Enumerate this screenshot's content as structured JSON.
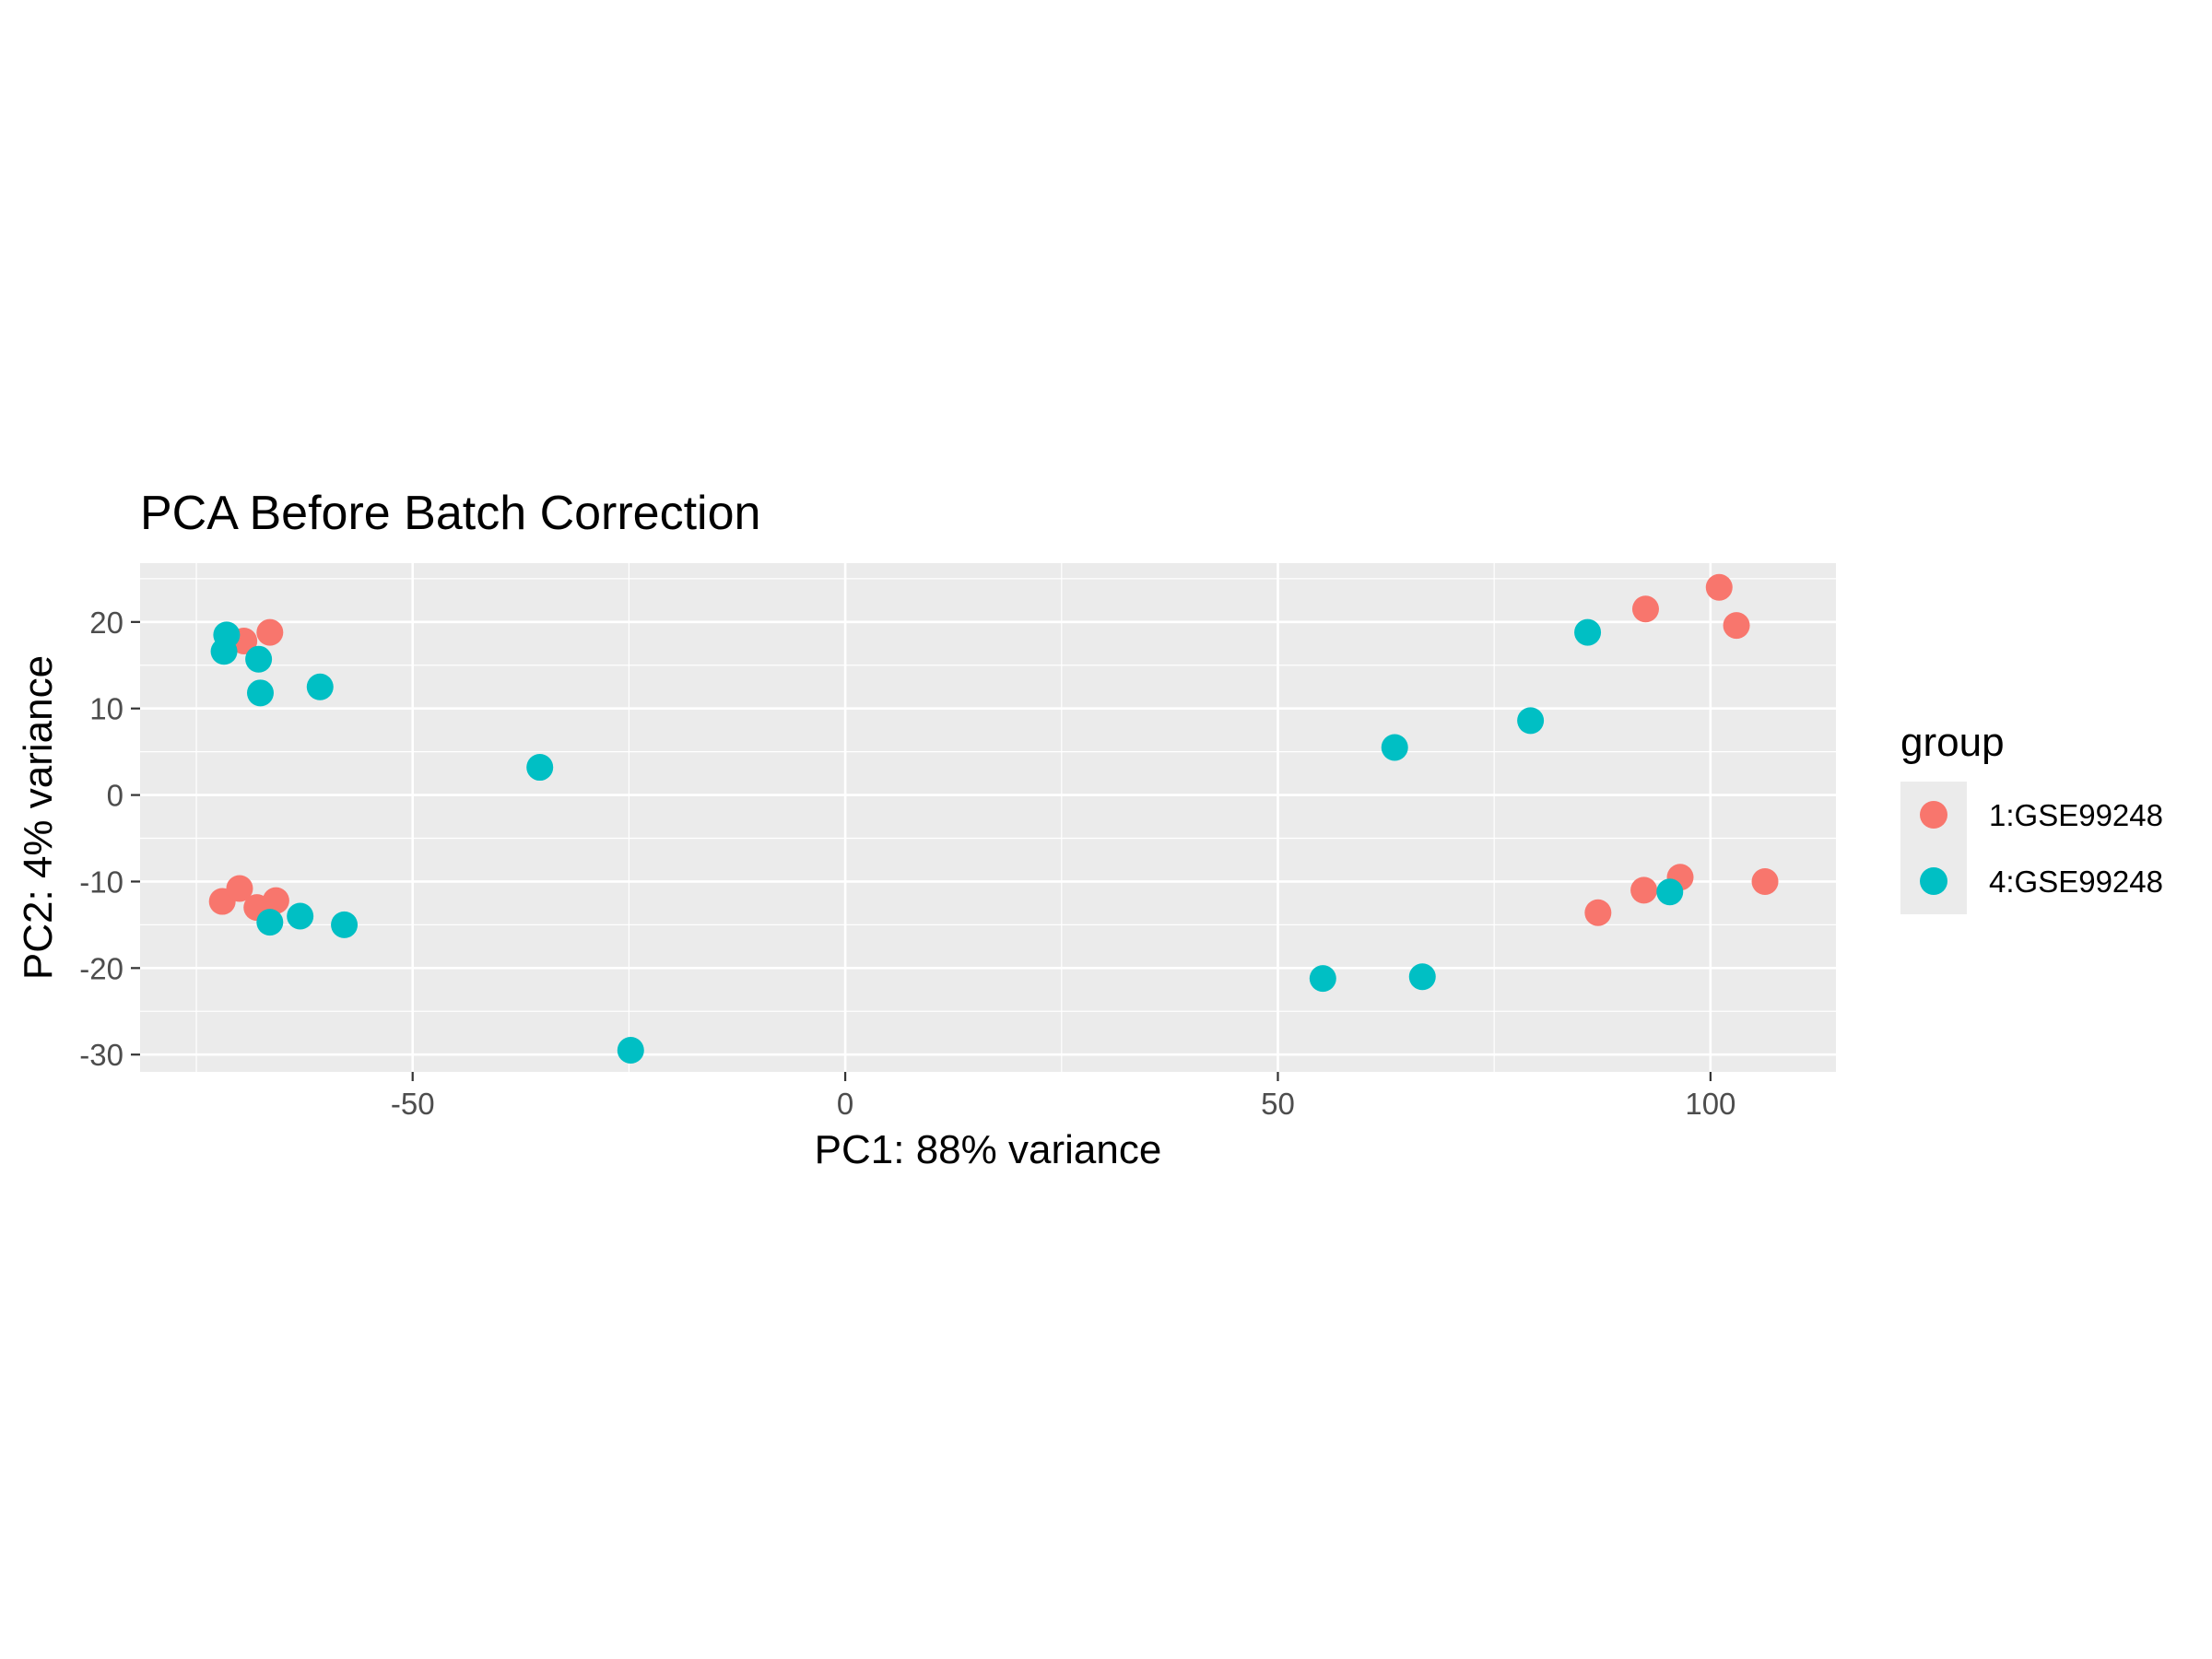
{
  "chart_data": {
    "type": "scatter",
    "title": "PCA Before Batch Correction",
    "xlabel": "PC1: 88% variance",
    "ylabel": "PC2: 4% variance",
    "xlim": [
      -81.5,
      114.5
    ],
    "ylim": [
      -32,
      26.8
    ],
    "xticks": [
      -50,
      0,
      50,
      100
    ],
    "yticks": [
      -30,
      -20,
      -10,
      0,
      10,
      20
    ],
    "grid": true,
    "legend": {
      "title": "group",
      "position": "right"
    },
    "series": [
      {
        "name": "1:GSE99248",
        "color": "#F8766D",
        "points": [
          [
            -69.5,
            17.8
          ],
          [
            -66.5,
            18.8
          ],
          [
            -72,
            -12.3
          ],
          [
            -70,
            -10.8
          ],
          [
            -68,
            -13
          ],
          [
            -65.8,
            -12.2
          ],
          [
            92.5,
            21.5
          ],
          [
            101,
            24
          ],
          [
            103,
            19.6
          ],
          [
            87,
            -13.6
          ],
          [
            92.3,
            -11
          ],
          [
            96.5,
            -9.5
          ],
          [
            106.3,
            -10
          ]
        ]
      },
      {
        "name": "4:GSE99248",
        "color": "#00BFC4",
        "points": [
          [
            -71.5,
            18.5
          ],
          [
            -71.8,
            16.6
          ],
          [
            -67.8,
            15.7
          ],
          [
            -67.6,
            11.8
          ],
          [
            -60.7,
            12.5
          ],
          [
            -35.3,
            3.2
          ],
          [
            -66.5,
            -14.7
          ],
          [
            -63,
            -14
          ],
          [
            -57.9,
            -15
          ],
          [
            -24.8,
            -29.5
          ],
          [
            55.2,
            -21.2
          ],
          [
            66.7,
            -21
          ],
          [
            63.5,
            5.5
          ],
          [
            79.2,
            8.6
          ],
          [
            85.8,
            18.8
          ],
          [
            95.3,
            -11.2
          ]
        ]
      }
    ]
  }
}
